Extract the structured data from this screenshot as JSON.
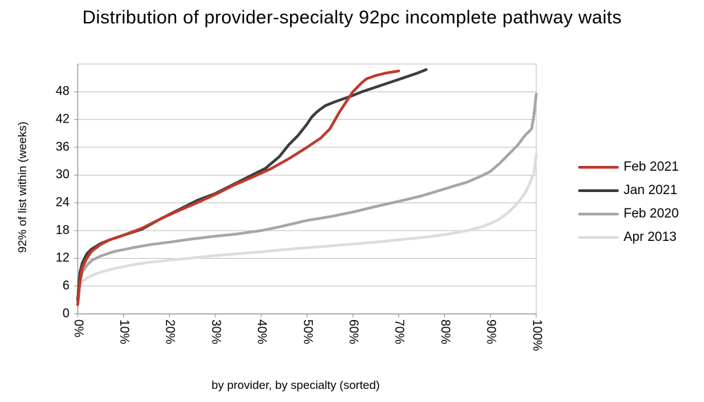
{
  "chart_data": {
    "type": "line",
    "title": "Distribution of provider-specialty 92pc incomplete pathway waits",
    "xlabel": "by provider, by specialty (sorted)",
    "ylabel": "92% of list within (weeks)",
    "xlim": [
      0,
      100
    ],
    "ylim": [
      0,
      54
    ],
    "x_ticks": [
      "0%",
      "10%",
      "20%",
      "30%",
      "40%",
      "50%",
      "60%",
      "70%",
      "80%",
      "90%",
      "100%"
    ],
    "y_ticks": [
      "0",
      "6",
      "12",
      "18",
      "24",
      "30",
      "36",
      "42",
      "48"
    ],
    "grid": "horizontal",
    "legend_position": "right",
    "series": [
      {
        "name": "Feb 2021",
        "color": "#c0392b",
        "x": [
          0,
          0.5,
          1,
          2,
          3,
          5,
          7,
          10,
          14,
          18,
          22,
          26,
          30,
          34,
          38,
          42,
          46,
          50,
          53,
          55,
          57,
          59,
          60,
          61,
          62,
          63,
          65,
          67,
          70
        ],
        "y": [
          2,
          7,
          10,
          12,
          13.5,
          15,
          16,
          17,
          18.5,
          20.5,
          22.3,
          24,
          25.8,
          27.8,
          29.5,
          31.3,
          33.5,
          36,
          38,
          40,
          43.5,
          46.5,
          48,
          49,
          50,
          50.8,
          51.5,
          52,
          52.5
        ]
      },
      {
        "name": "Jan 2021",
        "color": "#3c3c3c",
        "x": [
          0,
          0.5,
          1,
          2,
          3,
          5,
          7,
          10,
          14,
          18,
          22,
          26,
          30,
          34,
          38,
          41,
          44,
          46,
          48,
          50,
          51,
          52,
          53,
          54,
          56,
          58,
          60,
          62,
          65,
          68,
          71,
          74,
          76
        ],
        "y": [
          3,
          9,
          11,
          13,
          14,
          15.2,
          16,
          17,
          18.3,
          20.5,
          22.5,
          24.5,
          26,
          28,
          30,
          31.5,
          34,
          36.5,
          38.5,
          41,
          42.5,
          43.5,
          44.3,
          45,
          45.8,
          46.5,
          47.2,
          48,
          49,
          50,
          51,
          52,
          52.8
        ]
      },
      {
        "name": "Feb 2020",
        "color": "#a6a6a6",
        "x": [
          0,
          0.5,
          1,
          2,
          3,
          5,
          8,
          12,
          16,
          20,
          25,
          30,
          35,
          40,
          44,
          47,
          50,
          55,
          60,
          65,
          70,
          75,
          80,
          85,
          88,
          90,
          92,
          94,
          96,
          97.5,
          99,
          99.5,
          100
        ],
        "y": [
          3,
          7,
          9,
          10.5,
          11.5,
          12.5,
          13.5,
          14.3,
          15,
          15.5,
          16.2,
          16.8,
          17.3,
          18,
          18.8,
          19.5,
          20.2,
          21,
          22,
          23.2,
          24.3,
          25.5,
          27,
          28.5,
          29.8,
          30.8,
          32.5,
          34.5,
          36.5,
          38.5,
          40,
          43,
          47.5
        ]
      },
      {
        "name": "Apr 2013",
        "color": "#dcdcdc",
        "x": [
          0,
          0.5,
          1,
          2,
          3,
          5,
          8,
          12,
          16,
          20,
          25,
          30,
          35,
          40,
          45,
          50,
          55,
          60,
          65,
          70,
          75,
          80,
          85,
          88,
          90,
          92,
          94,
          96,
          97.5,
          98.5,
          99.5,
          100
        ],
        "y": [
          5,
          6.5,
          7,
          7.7,
          8.3,
          9,
          9.8,
          10.6,
          11.2,
          11.6,
          12.1,
          12.6,
          13,
          13.4,
          13.9,
          14.3,
          14.7,
          15.1,
          15.5,
          16,
          16.5,
          17.1,
          18,
          18.8,
          19.5,
          20.5,
          22,
          24,
          26,
          28,
          30.5,
          34.5
        ]
      }
    ]
  }
}
